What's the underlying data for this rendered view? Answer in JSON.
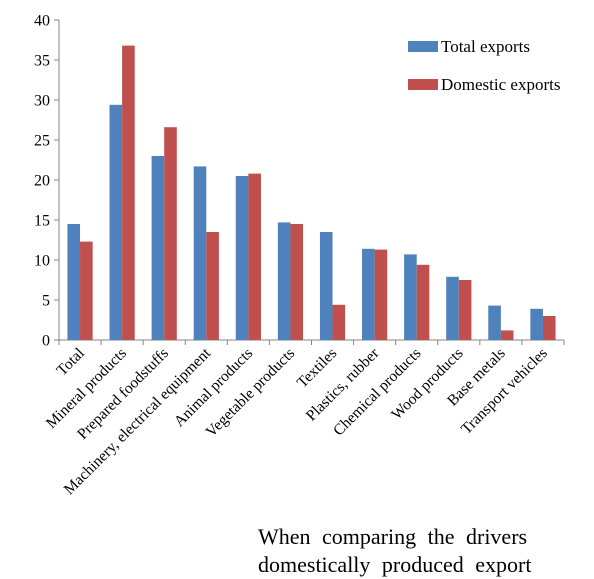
{
  "chart_data": {
    "type": "bar",
    "categories": [
      "Total",
      "Mineral products",
      "Prepared foodstuffs",
      "Machinery, electrical equipment",
      "Animal products",
      "Vegetable products",
      "Textiles",
      "Plastics, rubber",
      "Chemical products",
      "Wood products",
      "Base metals",
      "Transport vehicles"
    ],
    "series": [
      {
        "name": "Total exports",
        "color": "#4F81BD",
        "values": [
          14.5,
          29.4,
          23.0,
          21.7,
          20.5,
          14.7,
          13.5,
          11.4,
          10.7,
          7.9,
          4.3,
          3.9
        ]
      },
      {
        "name": "Domestic exports",
        "color": "#C0504D",
        "values": [
          12.3,
          36.8,
          26.6,
          13.5,
          20.8,
          14.5,
          4.4,
          11.3,
          9.4,
          7.5,
          1.2,
          3.0
        ]
      }
    ],
    "ylim": [
      0,
      40
    ],
    "yticks": [
      0,
      5,
      10,
      15,
      20,
      25,
      30,
      35,
      40
    ],
    "title": "",
    "xlabel": "",
    "ylabel": "",
    "legend_position": "top-right",
    "grid": false
  },
  "body_text": {
    "line1": "When comparing the drivers",
    "line2": "domestically produced export"
  }
}
